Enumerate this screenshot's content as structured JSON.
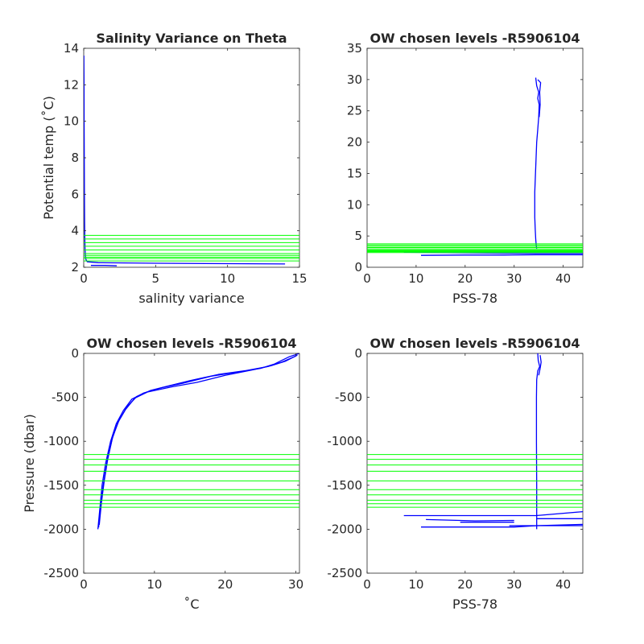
{
  "chart_data": [
    {
      "type": "line",
      "title": "Salinity Variance on Theta",
      "xlabel": "salinity variance",
      "ylabel": "Potential temp (˚C)",
      "xlim": [
        0,
        15
      ],
      "ylim": [
        2,
        14
      ],
      "xticks": [
        "0",
        "5",
        "10",
        "15"
      ],
      "yticks": [
        "2",
        "4",
        "6",
        "8",
        "10",
        "12",
        "14"
      ],
      "series": [
        {
          "color": "#0000ff",
          "points": [
            [
              0.01,
              13.6
            ],
            [
              0.02,
              12
            ],
            [
              0.03,
              10
            ],
            [
              0.04,
              8
            ],
            [
              0.05,
              6
            ],
            [
              0.06,
              4.5
            ],
            [
              0.07,
              3.7
            ],
            [
              0.09,
              3.0
            ],
            [
              0.12,
              2.6
            ],
            [
              0.16,
              2.4
            ],
            [
              0.25,
              2.3
            ],
            [
              1,
              2.25
            ],
            [
              5,
              2.22
            ],
            [
              10,
              2.2
            ],
            [
              14,
              2.18
            ]
          ]
        },
        {
          "color": "#0000ff",
          "points": [
            [
              0.5,
              2.1
            ],
            [
              1.5,
              2.1
            ],
            [
              2.3,
              2.08
            ]
          ]
        }
      ],
      "levels": [
        2.35,
        2.48,
        2.55,
        2.65,
        2.75,
        2.95,
        3.15,
        3.35,
        3.55,
        3.75
      ],
      "level_color": "#00ff00",
      "grid": false
    },
    {
      "type": "line",
      "title": "OW chosen levels -R5906104",
      "xlabel": "PSS-78",
      "ylabel": "",
      "xlim": [
        0,
        44
      ],
      "ylim": [
        0,
        35
      ],
      "xticks": [
        "0",
        "10",
        "20",
        "30",
        "40"
      ],
      "yticks": [
        "0",
        "5",
        "10",
        "15",
        "20",
        "25",
        "30",
        "35"
      ],
      "series": [
        {
          "color": "#0000ff",
          "points": [
            [
              34.4,
              30.3
            ],
            [
              34.6,
              29
            ],
            [
              35,
              28
            ],
            [
              34.8,
              27
            ],
            [
              35.1,
              26
            ],
            [
              35,
              24
            ],
            [
              34.8,
              22
            ],
            [
              34.6,
              20
            ],
            [
              34.5,
              18
            ],
            [
              34.4,
              16
            ],
            [
              34.3,
              14
            ],
            [
              34.2,
              12
            ],
            [
              34.2,
              10
            ],
            [
              34.2,
              8
            ],
            [
              34.3,
              6
            ],
            [
              34.4,
              4.5
            ],
            [
              34.5,
              3.5
            ],
            [
              34.6,
              3
            ]
          ]
        },
        {
          "color": "#0000ff",
          "points": [
            [
              34.8,
              30
            ],
            [
              35.4,
              29.5
            ],
            [
              35.2,
              28
            ],
            [
              35.3,
              26
            ],
            [
              35.1,
              24
            ]
          ]
        },
        {
          "color": "#0000ff",
          "points": [
            [
              7.5,
              2.4
            ],
            [
              20,
              2.3
            ],
            [
              34.5,
              2.2
            ],
            [
              44,
              2.2
            ]
          ]
        },
        {
          "color": "#0000ff",
          "points": [
            [
              11,
              1.9
            ],
            [
              20,
              1.95
            ],
            [
              28,
              1.95
            ],
            [
              34.5,
              2.0
            ],
            [
              44,
              2.0
            ]
          ]
        }
      ],
      "levels": [
        2.35,
        2.48,
        2.55,
        2.65,
        2.75,
        2.95,
        3.15,
        3.35,
        3.55,
        3.75
      ],
      "level_color": "#00ff00",
      "grid": false
    },
    {
      "type": "line",
      "title": "OW chosen levels -R5906104",
      "xlabel": "˚C",
      "ylabel": "Pressure (dbar)",
      "xlim": [
        0,
        30.5
      ],
      "ylim": [
        -2500,
        0
      ],
      "xticks": [
        "0",
        "10",
        "20",
        "30"
      ],
      "yticks": [
        "-2500",
        "-2000",
        "-1500",
        "-1000",
        "-500",
        "0"
      ],
      "series": [
        {
          "color": "#0000ff",
          "points": [
            [
              2.0,
              -2000
            ],
            [
              2.3,
              -1750
            ],
            [
              2.6,
              -1500
            ],
            [
              3.1,
              -1250
            ],
            [
              3.8,
              -1000
            ],
            [
              4.6,
              -800
            ],
            [
              5.6,
              -650
            ],
            [
              6.8,
              -520
            ],
            [
              8.5,
              -450
            ],
            [
              11,
              -390
            ],
            [
              14,
              -340
            ],
            [
              18,
              -260
            ],
            [
              22,
              -210
            ],
            [
              25,
              -170
            ],
            [
              27,
              -120
            ],
            [
              28,
              -80
            ],
            [
              29,
              -40
            ],
            [
              30.5,
              0
            ]
          ]
        },
        {
          "color": "#0000ff",
          "points": [
            [
              2.2,
              -1950
            ],
            [
              2.5,
              -1700
            ],
            [
              2.9,
              -1450
            ],
            [
              3.4,
              -1200
            ],
            [
              4.1,
              -950
            ],
            [
              5.0,
              -760
            ],
            [
              6.1,
              -610
            ],
            [
              7.5,
              -490
            ],
            [
              9.5,
              -420
            ],
            [
              12,
              -370
            ],
            [
              15,
              -310
            ],
            [
              19,
              -240
            ],
            [
              23,
              -195
            ],
            [
              26,
              -150
            ],
            [
              28,
              -100
            ],
            [
              30,
              -30
            ]
          ]
        },
        {
          "color": "#0000ff",
          "points": [
            [
              2.1,
              -1980
            ],
            [
              2.4,
              -1720
            ],
            [
              2.8,
              -1480
            ],
            [
              3.3,
              -1230
            ],
            [
              4.0,
              -980
            ],
            [
              4.8,
              -790
            ],
            [
              5.9,
              -640
            ],
            [
              7.2,
              -510
            ],
            [
              9,
              -440
            ],
            [
              12.5,
              -380
            ],
            [
              16,
              -330
            ],
            [
              20,
              -250
            ],
            [
              24,
              -185
            ],
            [
              26.5,
              -140
            ],
            [
              28.5,
              -90
            ],
            [
              30.2,
              -20
            ]
          ]
        }
      ],
      "levels": [
        -1150,
        -1205,
        -1270,
        -1340,
        -1450,
        -1550,
        -1610,
        -1670,
        -1710,
        -1750
      ],
      "level_color": "#00ff00",
      "grid": false
    },
    {
      "type": "line",
      "title": "OW chosen levels -R5906104",
      "xlabel": "PSS-78",
      "ylabel": "",
      "xlim": [
        0,
        44
      ],
      "ylim": [
        -2500,
        0
      ],
      "xticks": [
        "0",
        "10",
        "20",
        "30",
        "40"
      ],
      "yticks": [
        "-2500",
        "-2000",
        "-1500",
        "-1000",
        "-500",
        "0"
      ],
      "series": [
        {
          "color": "#0000ff",
          "points": [
            [
              34.8,
              0
            ],
            [
              34.9,
              -80
            ],
            [
              35.2,
              -150
            ],
            [
              34.8,
              -200
            ],
            [
              34.6,
              -300
            ],
            [
              34.55,
              -500
            ],
            [
              34.55,
              -1000
            ],
            [
              34.6,
              -1500
            ],
            [
              34.6,
              -1840
            ],
            [
              34.6,
              -2000
            ]
          ]
        },
        {
          "color": "#0000ff",
          "points": [
            [
              35.3,
              -20
            ],
            [
              35.5,
              -100
            ],
            [
              35.3,
              -170
            ],
            [
              35.0,
              -250
            ]
          ]
        },
        {
          "color": "#0000ff",
          "points": [
            [
              7.5,
              -1845
            ],
            [
              34.5,
              -1845
            ],
            [
              44,
              -1800
            ]
          ]
        },
        {
          "color": "#0000ff",
          "points": [
            [
              12,
              -1890
            ],
            [
              22,
              -1905
            ],
            [
              30,
              -1900
            ]
          ]
        },
        {
          "color": "#0000ff",
          "points": [
            [
              19,
              -1920
            ],
            [
              30,
              -1920
            ]
          ]
        },
        {
          "color": "#0000ff",
          "points": [
            [
              11,
              -1975
            ],
            [
              30,
              -1975
            ],
            [
              34.6,
              -1960
            ],
            [
              44,
              -1945
            ]
          ]
        },
        {
          "color": "#0000ff",
          "points": [
            [
              29,
              -1960
            ],
            [
              44,
              -1960
            ]
          ]
        },
        {
          "color": "#0000ff",
          "points": [
            [
              34.6,
              -1880
            ],
            [
              44,
              -1880
            ]
          ]
        }
      ],
      "levels": [
        -1150,
        -1205,
        -1270,
        -1340,
        -1450,
        -1550,
        -1610,
        -1670,
        -1710,
        -1750
      ],
      "level_color": "#00ff00",
      "grid": false
    }
  ]
}
